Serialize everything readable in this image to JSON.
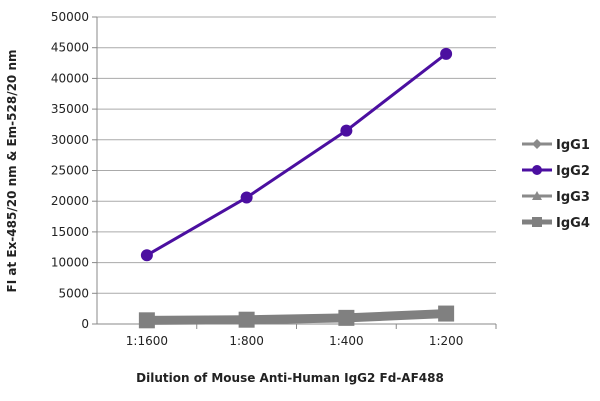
{
  "chart_data": {
    "type": "line",
    "title": "",
    "xlabel": "Dilution of Mouse Anti-Human IgG2 Fd-AF488",
    "ylabel": "FI at Ex-485/20 nm & Em-528/20 nm",
    "categories": [
      "1:1600",
      "1:800",
      "1:400",
      "1:200"
    ],
    "ylim": [
      0,
      50000
    ],
    "yticks": [
      0,
      5000,
      10000,
      15000,
      20000,
      25000,
      30000,
      35000,
      40000,
      45000,
      50000
    ],
    "grid": true,
    "legend": "right",
    "series": [
      {
        "name": "IgG1",
        "values": [
          600,
          700,
          1000,
          1700
        ],
        "color": "#8a8a8a",
        "marker": "diamond"
      },
      {
        "name": "IgG2",
        "values": [
          11200,
          20600,
          31500,
          44000
        ],
        "color": "#4b0fa0",
        "marker": "circle"
      },
      {
        "name": "IgG3",
        "values": [
          600,
          700,
          1000,
          1700
        ],
        "color": "#8a8a8a",
        "marker": "triangle"
      },
      {
        "name": "IgG4",
        "values": [
          600,
          700,
          1000,
          1700
        ],
        "color": "#808080",
        "marker": "square"
      }
    ]
  }
}
